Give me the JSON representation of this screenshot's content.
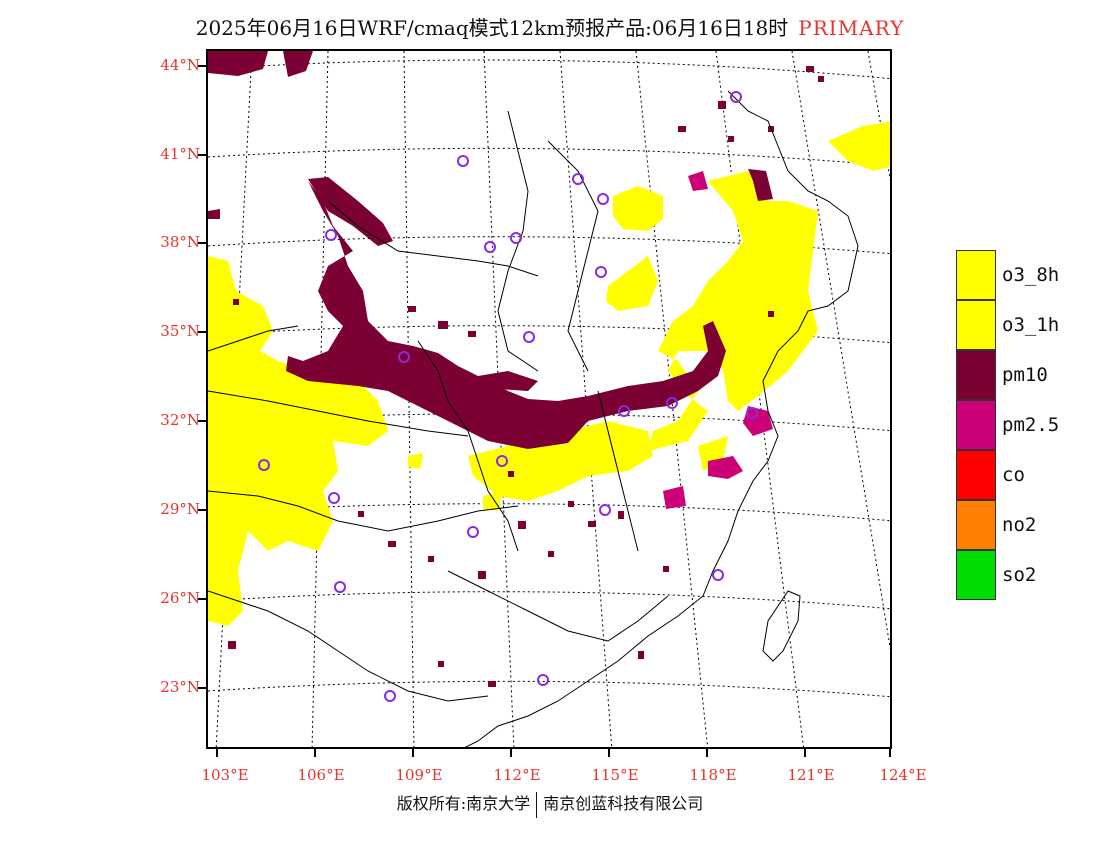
{
  "header": {
    "title": "2025年06月16日WRF/cmaq模式12km预报产品:06月16日18时",
    "tag": "PRIMARY",
    "tag_color": "#e8342e"
  },
  "axes": {
    "lat_labels": [
      "44°N",
      "41°N",
      "38°N",
      "35°N",
      "32°N",
      "29°N",
      "26°N",
      "23°N"
    ],
    "lon_labels": [
      "103°E",
      "106°E",
      "109°E",
      "112°E",
      "115°E",
      "118°E",
      "121°E",
      "124°E"
    ],
    "label_color": "#e8342e"
  },
  "legend": {
    "items": [
      {
        "label": "o3_8h",
        "color": "#ffff00"
      },
      {
        "label": "o3_1h",
        "color": "#ffff00"
      },
      {
        "label": "pm10",
        "color": "#7b0034"
      },
      {
        "label": "pm2.5",
        "color": "#cc0077"
      },
      {
        "label": "co",
        "color": "#ff0000"
      },
      {
        "label": "no2",
        "color": "#ff7f00"
      },
      {
        "label": "so2",
        "color": "#00dd00"
      }
    ]
  },
  "footer": {
    "left": "版权所有:南京大学",
    "right": "南京创蓝科技有限公司"
  },
  "map": {
    "station_marker": "purple-circle",
    "station_color": "#8a2be2"
  }
}
